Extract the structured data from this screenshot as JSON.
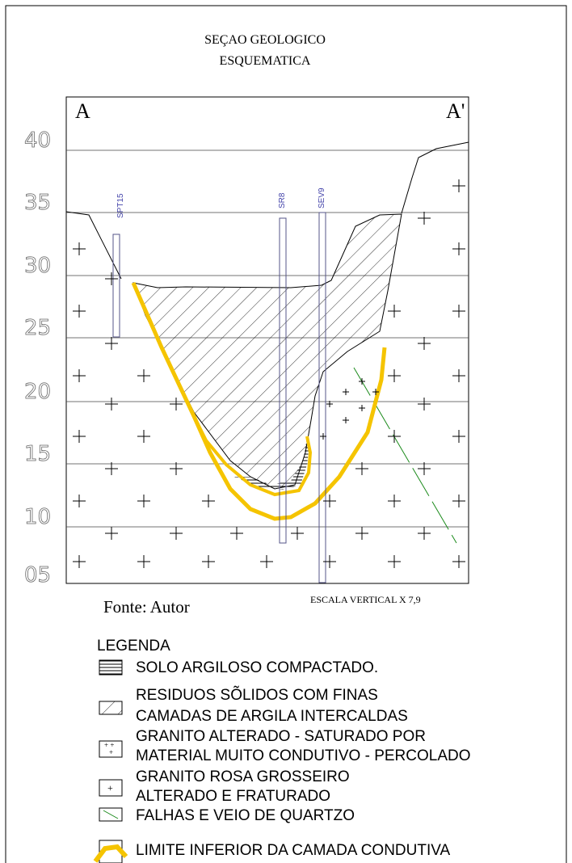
{
  "title": [
    "SEÇAO GEOLOGICO",
    "ESQUEMATICA"
  ],
  "section": {
    "left_label": "A",
    "right_label": "A'",
    "elevations": [
      "40",
      "35",
      "30",
      "25",
      "20",
      "15",
      "10",
      "05"
    ],
    "boreholes": [
      "SPT15",
      "SR8",
      "SEV9"
    ]
  },
  "source": "Fonte: Autor",
  "scale_note": "ESCALA VERTICAL X 7,9",
  "legend": {
    "title": "LEGENDA",
    "items": [
      {
        "lines": [
          "SOLO ARGILOSO COMPACTADO."
        ]
      },
      {
        "lines": [
          "RESIDUOS SÕLIDOS COM FINAS",
          "CAMADAS DE ARGILA INTERCALDAS"
        ]
      },
      {
        "lines": [
          "GRANITO ALTERADO - SATURADO POR",
          "MATERIAL MUITO CONDUTIVO - PERCOLADO"
        ]
      },
      {
        "lines": [
          "GRANITO ROSA GROSSEIRO",
          "ALTERADO E FRATURADO"
        ]
      },
      {
        "lines": [
          "FALHAS E VEIO DE QUARTZO"
        ]
      },
      {
        "lines": [
          "LIMITE INFERIOR DA CAMADA CONDUTIVA"
        ]
      }
    ]
  }
}
